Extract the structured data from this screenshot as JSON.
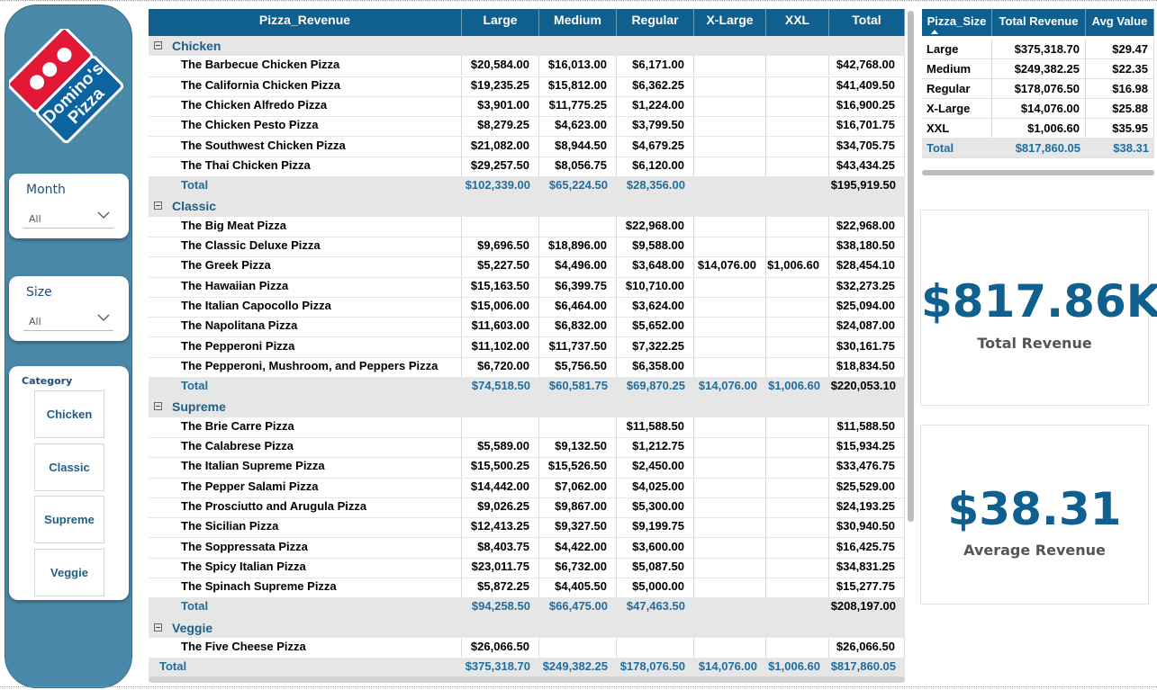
{
  "filters": {
    "month": {
      "title": "Month",
      "value": "All"
    },
    "size": {
      "title": "Size",
      "value": "All"
    },
    "category": {
      "title": "Category",
      "options": [
        "Chicken",
        "Classic",
        "Supreme",
        "Veggie"
      ]
    }
  },
  "logo": {
    "text_line1": "Domino's",
    "text_line2": "Pizza"
  },
  "matrix": {
    "headers": [
      "Pizza_Revenue",
      "Large",
      "Medium",
      "Regular",
      "X-Large",
      "XXL",
      "Total"
    ],
    "rows": [
      {
        "type": "group",
        "name": "Chicken"
      },
      {
        "type": "detail",
        "cells": [
          "The Barbecue Chicken Pizza",
          "$20,584.00",
          "$16,013.00",
          "$6,171.00",
          "",
          "",
          "$42,768.00"
        ]
      },
      {
        "type": "detail",
        "cells": [
          "The California Chicken Pizza",
          "$19,235.25",
          "$15,812.00",
          "$6,362.25",
          "",
          "",
          "$41,409.50"
        ]
      },
      {
        "type": "detail",
        "cells": [
          "The Chicken Alfredo Pizza",
          "$3,901.00",
          "$11,775.25",
          "$1,224.00",
          "",
          "",
          "$16,900.25"
        ]
      },
      {
        "type": "detail",
        "cells": [
          "The Chicken Pesto Pizza",
          "$8,279.25",
          "$4,623.00",
          "$3,799.50",
          "",
          "",
          "$16,701.75"
        ]
      },
      {
        "type": "detail",
        "cells": [
          "The Southwest Chicken Pizza",
          "$21,082.00",
          "$8,944.50",
          "$4,679.25",
          "",
          "",
          "$34,705.75"
        ]
      },
      {
        "type": "detail",
        "cells": [
          "The Thai Chicken Pizza",
          "$29,257.50",
          "$8,056.75",
          "$6,120.00",
          "",
          "",
          "$43,434.25"
        ]
      },
      {
        "type": "subtotal",
        "cells": [
          "Total",
          "$102,339.00",
          "$65,224.50",
          "$28,356.00",
          "",
          "",
          "$195,919.50"
        ]
      },
      {
        "type": "group",
        "name": "Classic"
      },
      {
        "type": "detail",
        "cells": [
          "The Big Meat Pizza",
          "",
          "",
          "$22,968.00",
          "",
          "",
          "$22,968.00"
        ]
      },
      {
        "type": "detail",
        "cells": [
          "The Classic Deluxe Pizza",
          "$9,696.50",
          "$18,896.00",
          "$9,588.00",
          "",
          "",
          "$38,180.50"
        ]
      },
      {
        "type": "detail",
        "cells": [
          "The Greek Pizza",
          "$5,227.50",
          "$4,496.00",
          "$3,648.00",
          "$14,076.00",
          "$1,006.60",
          "$28,454.10"
        ]
      },
      {
        "type": "detail",
        "cells": [
          "The Hawaiian Pizza",
          "$15,163.50",
          "$6,399.75",
          "$10,710.00",
          "",
          "",
          "$32,273.25"
        ]
      },
      {
        "type": "detail",
        "cells": [
          "The Italian Capocollo Pizza",
          "$15,006.00",
          "$6,464.00",
          "$3,624.00",
          "",
          "",
          "$25,094.00"
        ]
      },
      {
        "type": "detail",
        "cells": [
          "The Napolitana Pizza",
          "$11,603.00",
          "$6,832.00",
          "$5,652.00",
          "",
          "",
          "$24,087.00"
        ]
      },
      {
        "type": "detail",
        "cells": [
          "The Pepperoni Pizza",
          "$11,102.00",
          "$11,737.50",
          "$7,322.25",
          "",
          "",
          "$30,161.75"
        ]
      },
      {
        "type": "detail",
        "cells": [
          "The Pepperoni, Mushroom, and Peppers Pizza",
          "$6,720.00",
          "$5,756.50",
          "$6,358.00",
          "",
          "",
          "$18,834.50"
        ]
      },
      {
        "type": "subtotal",
        "cells": [
          "Total",
          "$74,518.50",
          "$60,581.75",
          "$69,870.25",
          "$14,076.00",
          "$1,006.60",
          "$220,053.10"
        ]
      },
      {
        "type": "group",
        "name": "Supreme"
      },
      {
        "type": "detail",
        "cells": [
          "The Brie Carre Pizza",
          "",
          "",
          "$11,588.50",
          "",
          "",
          "$11,588.50"
        ]
      },
      {
        "type": "detail",
        "cells": [
          "The Calabrese Pizza",
          "$5,589.00",
          "$9,132.50",
          "$1,212.75",
          "",
          "",
          "$15,934.25"
        ]
      },
      {
        "type": "detail",
        "cells": [
          "The Italian Supreme Pizza",
          "$15,500.25",
          "$15,526.50",
          "$2,450.00",
          "",
          "",
          "$33,476.75"
        ]
      },
      {
        "type": "detail",
        "cells": [
          "The Pepper Salami Pizza",
          "$14,442.00",
          "$7,062.00",
          "$4,025.00",
          "",
          "",
          "$25,529.00"
        ]
      },
      {
        "type": "detail",
        "cells": [
          "The Prosciutto and Arugula Pizza",
          "$9,026.25",
          "$9,867.00",
          "$5,300.00",
          "",
          "",
          "$24,193.25"
        ]
      },
      {
        "type": "detail",
        "cells": [
          "The Sicilian Pizza",
          "$12,413.25",
          "$9,327.50",
          "$9,199.75",
          "",
          "",
          "$30,940.50"
        ]
      },
      {
        "type": "detail",
        "cells": [
          "The Soppressata Pizza",
          "$8,403.75",
          "$4,422.00",
          "$3,600.00",
          "",
          "",
          "$16,425.75"
        ]
      },
      {
        "type": "detail",
        "cells": [
          "The Spicy Italian Pizza",
          "$23,011.75",
          "$6,732.00",
          "$5,087.50",
          "",
          "",
          "$34,831.25"
        ]
      },
      {
        "type": "detail",
        "cells": [
          "The Spinach Supreme Pizza",
          "$5,872.25",
          "$4,405.50",
          "$5,000.00",
          "",
          "",
          "$15,277.75"
        ]
      },
      {
        "type": "subtotal",
        "cells": [
          "Total",
          "$94,258.50",
          "$66,475.00",
          "$47,463.50",
          "",
          "",
          "$208,197.00"
        ]
      },
      {
        "type": "group",
        "name": "Veggie"
      },
      {
        "type": "detail",
        "cells": [
          "The Five Cheese Pizza",
          "$26,066.50",
          "",
          "",
          "",
          "",
          "$26,066.50"
        ]
      },
      {
        "type": "grandtotal",
        "cells": [
          "Total",
          "$375,318.70",
          "$249,382.25",
          "$178,076.50",
          "$14,076.00",
          "$1,006.60",
          "$817,860.05"
        ]
      }
    ]
  },
  "size_table": {
    "headers": [
      "Pizza_Size",
      "Total Revenue",
      "Avg Value"
    ],
    "rows": [
      [
        "Large",
        "$375,318.70",
        "$29.47"
      ],
      [
        "Medium",
        "$249,382.25",
        "$22.35"
      ],
      [
        "Regular",
        "$178,076.50",
        "$16.98"
      ],
      [
        "X-Large",
        "$14,076.00",
        "$25.88"
      ],
      [
        "XXL",
        "$1,006.60",
        "$35.95"
      ]
    ],
    "total": [
      "Total",
      "$817,860.05",
      "$38.31"
    ]
  },
  "kpis": {
    "total_revenue": {
      "value": "$817.86K",
      "label": "Total Revenue"
    },
    "avg_revenue": {
      "value": "$38.31",
      "label": "Average Revenue"
    }
  },
  "colors": {
    "brand_blue": "#0f5f8f",
    "panel_blue": "#4a88a9",
    "accent_red": "#e31837"
  }
}
